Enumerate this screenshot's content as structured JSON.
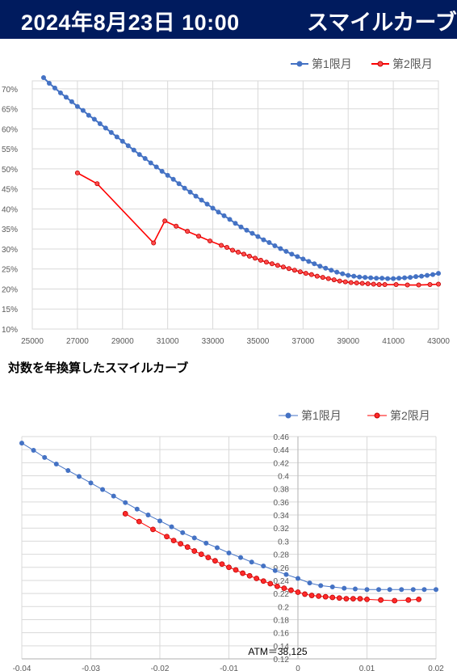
{
  "header": {
    "date_time": "2024年8月23日 10:00",
    "title": "スマイルカーブ"
  },
  "colors": {
    "header_bg": "#001b5e",
    "series1": "#4472c4",
    "series2": "#ff0000"
  },
  "chart_data": [
    {
      "type": "line",
      "title": "",
      "xlabel": "",
      "ylabel": "",
      "xlim": [
        25000,
        43000
      ],
      "ylim": [
        0.1,
        0.72
      ],
      "x_ticks": [
        "25000",
        "27000",
        "29000",
        "31000",
        "33000",
        "35000",
        "37000",
        "39000",
        "41000",
        "43000"
      ],
      "y_ticks": [
        "10%",
        "15%",
        "20%",
        "25%",
        "30%",
        "35%",
        "40%",
        "45%",
        "50%",
        "55%",
        "60%",
        "65%",
        "70%"
      ],
      "legend": "top-right",
      "grid": true,
      "series": [
        {
          "name": "第1限月",
          "color": "#4472c4",
          "x": [
            25500,
            25750,
            26000,
            26250,
            26500,
            26750,
            27000,
            27250,
            27500,
            27750,
            28000,
            28250,
            28500,
            28750,
            29000,
            29250,
            29500,
            29750,
            30000,
            30250,
            30500,
            30750,
            31000,
            31250,
            31500,
            31750,
            32000,
            32250,
            32500,
            32750,
            33000,
            33250,
            33500,
            33750,
            34000,
            34250,
            34500,
            34750,
            35000,
            35250,
            35500,
            35750,
            36000,
            36250,
            36500,
            36750,
            37000,
            37250,
            37500,
            37750,
            38000,
            38250,
            38500,
            38750,
            39000,
            39250,
            39500,
            39750,
            40000,
            40250,
            40500,
            40750,
            41000,
            41250,
            41500,
            41750,
            42000,
            42250,
            42500,
            42750,
            43000
          ],
          "values": [
            0.728,
            0.714,
            0.702,
            0.69,
            0.679,
            0.668,
            0.656,
            0.646,
            0.634,
            0.624,
            0.613,
            0.602,
            0.591,
            0.58,
            0.569,
            0.558,
            0.547,
            0.536,
            0.526,
            0.515,
            0.505,
            0.494,
            0.484,
            0.474,
            0.463,
            0.452,
            0.442,
            0.432,
            0.422,
            0.412,
            0.402,
            0.392,
            0.383,
            0.374,
            0.364,
            0.355,
            0.347,
            0.339,
            0.331,
            0.323,
            0.316,
            0.308,
            0.301,
            0.294,
            0.287,
            0.281,
            0.275,
            0.269,
            0.263,
            0.257,
            0.252,
            0.247,
            0.242,
            0.238,
            0.234,
            0.232,
            0.23,
            0.229,
            0.228,
            0.227,
            0.227,
            0.226,
            0.226,
            0.227,
            0.228,
            0.229,
            0.231,
            0.232,
            0.234,
            0.236,
            0.239
          ]
        },
        {
          "name": "第2限月",
          "color": "#ff0000",
          "x": [
            27000,
            27875,
            30375,
            30875,
            31375,
            31875,
            32375,
            32875,
            33375,
            33625,
            33875,
            34125,
            34375,
            34625,
            34875,
            35125,
            35375,
            35625,
            35875,
            36125,
            36375,
            36625,
            36875,
            37125,
            37375,
            37625,
            37875,
            38125,
            38375,
            38625,
            38875,
            39125,
            39375,
            39625,
            39875,
            40125,
            40375,
            40625,
            41125,
            41625,
            42125,
            42625,
            43000
          ],
          "values": [
            0.49,
            0.463,
            0.315,
            0.37,
            0.357,
            0.344,
            0.332,
            0.32,
            0.309,
            0.304,
            0.297,
            0.292,
            0.287,
            0.282,
            0.277,
            0.272,
            0.267,
            0.263,
            0.259,
            0.255,
            0.251,
            0.247,
            0.243,
            0.239,
            0.236,
            0.232,
            0.229,
            0.226,
            0.223,
            0.22,
            0.218,
            0.216,
            0.215,
            0.214,
            0.213,
            0.212,
            0.211,
            0.211,
            0.211,
            0.21,
            0.21,
            0.211,
            0.212
          ]
        }
      ]
    },
    {
      "type": "scatter",
      "title": "対数を年換算したスマイルカーブ",
      "xlabel": "",
      "ylabel": "",
      "xlim": [
        -0.04,
        0.02
      ],
      "ylim": [
        0.12,
        0.46
      ],
      "x_ticks": [
        "-0.04",
        "-0.03",
        "-0.02",
        "-0.01",
        "0",
        "0.01",
        "0.02"
      ],
      "y_ticks": [
        "0.46",
        "0.44",
        "0.42",
        "0.4",
        "0.38",
        "0.36",
        "0.34",
        "0.32",
        "0.3",
        "0.28",
        "0.26",
        "0.24",
        "0.22",
        "0.2",
        "0.18",
        "0.16",
        "0.14",
        "0.12"
      ],
      "legend": "top-right",
      "grid": true,
      "annotation": "ATM＝38,125",
      "series": [
        {
          "name": "第1限月",
          "color": "#4472c4",
          "x": [
            -0.04,
            -0.0383,
            -0.0367,
            -0.035,
            -0.0333,
            -0.0317,
            -0.03,
            -0.0283,
            -0.0267,
            -0.025,
            -0.0233,
            -0.0217,
            -0.02,
            -0.0183,
            -0.0167,
            -0.015,
            -0.0133,
            -0.0117,
            -0.01,
            -0.0083,
            -0.0067,
            -0.005,
            -0.0033,
            -0.0017,
            0.0,
            0.0017,
            0.0033,
            0.005,
            0.0067,
            0.0083,
            0.01,
            0.0117,
            0.0133,
            0.015,
            0.0167,
            0.0183,
            0.02
          ],
          "values": [
            0.45,
            0.439,
            0.428,
            0.418,
            0.408,
            0.399,
            0.389,
            0.379,
            0.369,
            0.359,
            0.349,
            0.34,
            0.331,
            0.322,
            0.313,
            0.305,
            0.297,
            0.29,
            0.282,
            0.275,
            0.268,
            0.262,
            0.255,
            0.249,
            0.243,
            0.236,
            0.232,
            0.23,
            0.228,
            0.227,
            0.226,
            0.226,
            0.226,
            0.226,
            0.226,
            0.226,
            0.226
          ]
        },
        {
          "name": "第2限月",
          "color": "#ff0000",
          "x": [
            -0.025,
            -0.023,
            -0.021,
            -0.019,
            -0.018,
            -0.017,
            -0.016,
            -0.015,
            -0.014,
            -0.013,
            -0.012,
            -0.011,
            -0.01,
            -0.009,
            -0.008,
            -0.007,
            -0.006,
            -0.005,
            -0.004,
            -0.003,
            -0.002,
            -0.001,
            0.0,
            0.001,
            0.002,
            0.003,
            0.004,
            0.005,
            0.006,
            0.007,
            0.008,
            0.009,
            0.01,
            0.012,
            0.014,
            0.016,
            0.0175
          ],
          "values": [
            0.342,
            0.33,
            0.318,
            0.307,
            0.301,
            0.296,
            0.291,
            0.285,
            0.28,
            0.275,
            0.27,
            0.265,
            0.26,
            0.256,
            0.251,
            0.247,
            0.243,
            0.239,
            0.235,
            0.231,
            0.228,
            0.225,
            0.222,
            0.219,
            0.217,
            0.216,
            0.215,
            0.214,
            0.213,
            0.212,
            0.212,
            0.212,
            0.211,
            0.21,
            0.209,
            0.21,
            0.211
          ]
        }
      ]
    }
  ]
}
